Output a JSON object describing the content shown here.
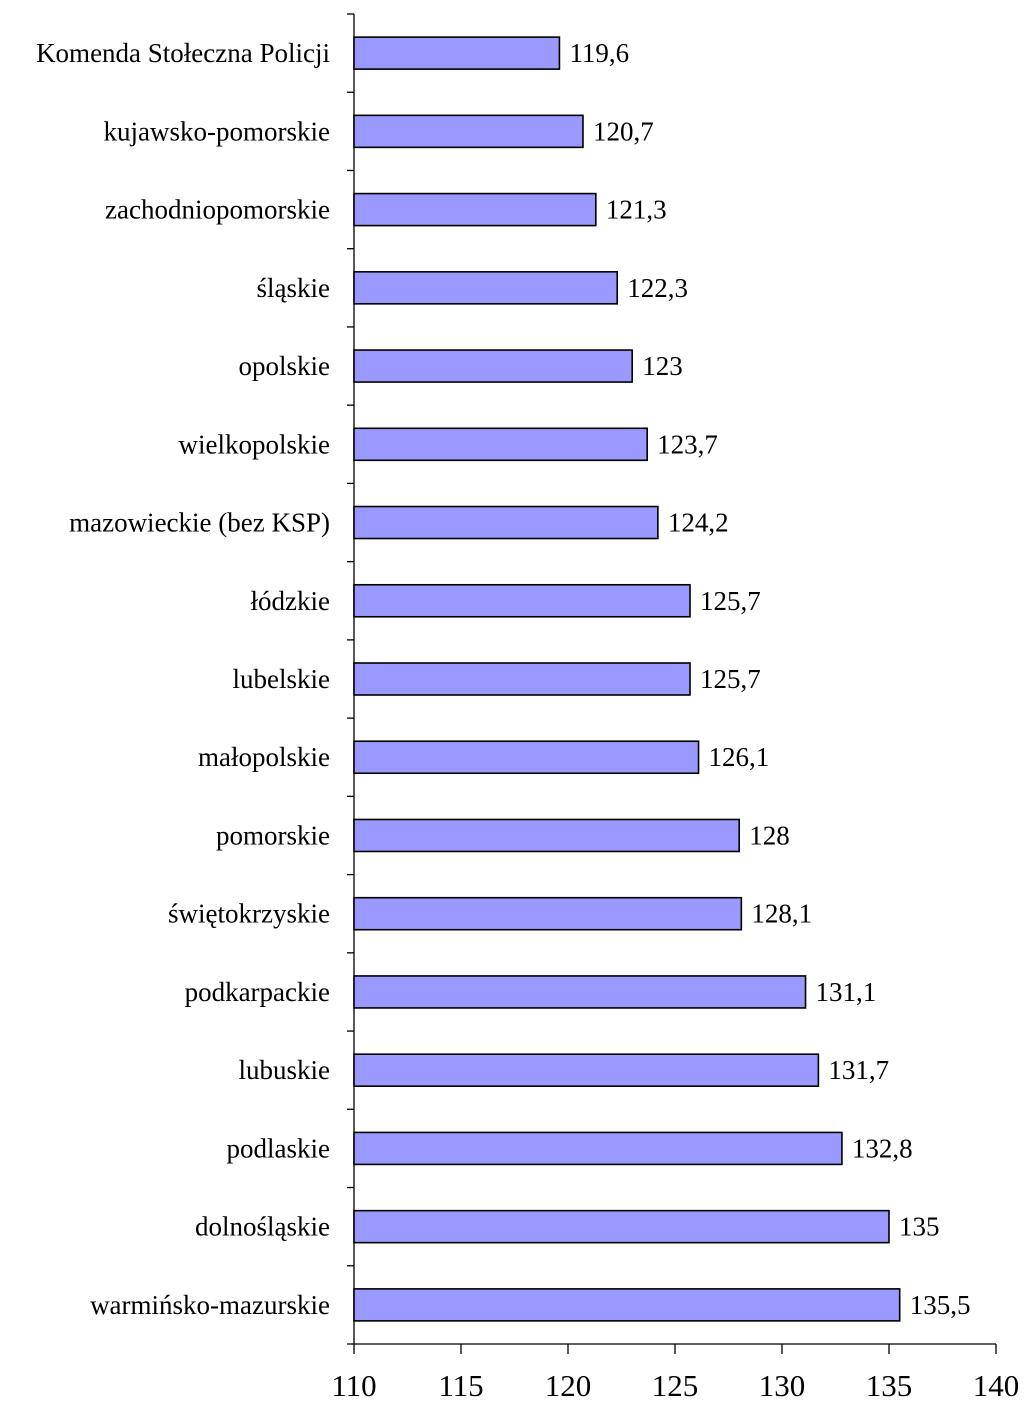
{
  "chart_data": {
    "type": "bar",
    "orientation": "horizontal",
    "title": "",
    "xlabel": "",
    "ylabel": "",
    "xlim": [
      110,
      140
    ],
    "x_ticks": [
      110,
      115,
      120,
      125,
      130,
      135,
      140
    ],
    "grid": false,
    "legend": "none",
    "bar_color": "#9999ff",
    "categories": [
      "Komenda Stołeczna Policji",
      "kujawsko-pomorskie",
      "zachodniopomorskie",
      "śląskie",
      "opolskie",
      "wielkopolskie",
      "mazowieckie (bez KSP)",
      "łódzkie",
      "lubelskie",
      "małopolskie",
      "pomorskie",
      "świętokrzyskie",
      "podkarpackie",
      "lubuskie",
      "podlaskie",
      "dolnośląskie",
      "warmińsko-mazurskie"
    ],
    "values": [
      119.6,
      120.7,
      121.3,
      122.3,
      123,
      123.7,
      124.2,
      125.7,
      125.7,
      126.1,
      128,
      128.1,
      131.1,
      131.7,
      132.8,
      135,
      135.5
    ],
    "value_labels": [
      "119,6",
      "120,7",
      "121,3",
      "122,3",
      "123",
      "123,7",
      "124,2",
      "125,7",
      "125,7",
      "126,1",
      "128",
      "128,1",
      "131,1",
      "131,7",
      "132,8",
      "135",
      "135,5"
    ]
  }
}
